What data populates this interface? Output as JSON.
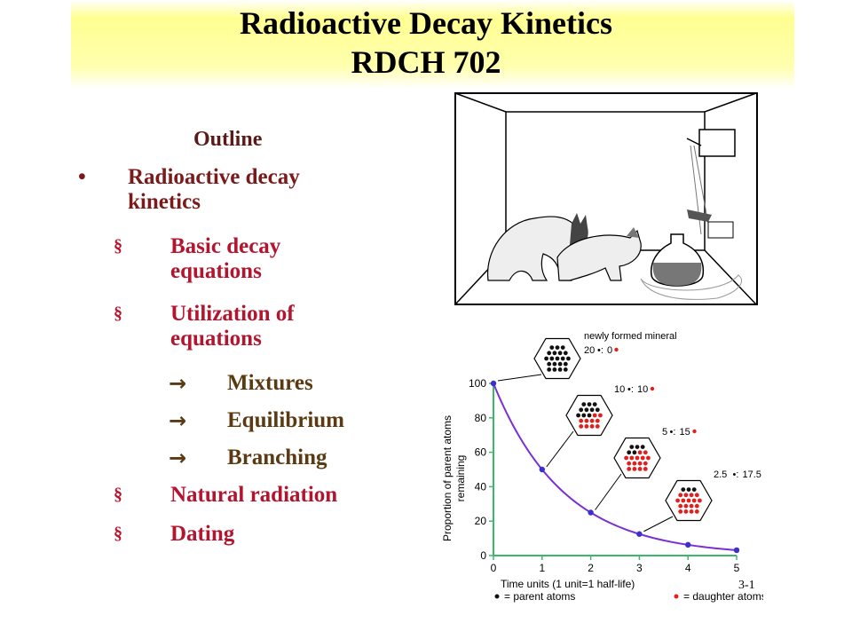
{
  "title": {
    "line1": "Radioactive Decay Kinetics",
    "line2": "RDCH 702"
  },
  "outline": {
    "heading": "Outline",
    "items": [
      {
        "level": 1,
        "bullet": "•",
        "text1": "Radioactive decay",
        "text2": "kinetics"
      },
      {
        "level": 2,
        "bullet": "§",
        "text1": "Basic decay",
        "text2": "equations"
      },
      {
        "level": 2,
        "bullet": "§",
        "text1": "Utilization of",
        "text2": "equations"
      },
      {
        "level": 3,
        "bullet": "→",
        "text1": "Mixtures"
      },
      {
        "level": 3,
        "bullet": "→",
        "text1": "Equilibrium"
      },
      {
        "level": 3,
        "bullet": "→",
        "text1": "Branching"
      },
      {
        "level": 2,
        "bullet": "§",
        "text1": "Natural radiation"
      },
      {
        "level": 2,
        "bullet": "§",
        "text1": "Dating"
      }
    ]
  },
  "slide_number": "3-1",
  "colors": {
    "curve": "#7a2fd6",
    "parent": "#111111",
    "daughter": "#e0201e",
    "axis": "#3cb86a",
    "title_band": "#ffff8c"
  },
  "chart_data": {
    "type": "line",
    "x": [
      0,
      1,
      2,
      3,
      4,
      5
    ],
    "y": [
      100,
      50,
      25,
      12.5,
      6.25,
      3.125
    ],
    "xlabel": "Time units (1 unit=1 half-life)",
    "ylabel_line1": "Proportion of parent atoms",
    "ylabel_line2": "remaining",
    "xticks": [
      "0",
      "1",
      "2",
      "3",
      "4",
      "5"
    ],
    "yticks": [
      "0",
      "20",
      "40",
      "60",
      "80",
      "100"
    ],
    "xlim": [
      0,
      5
    ],
    "ylim": [
      0,
      100
    ],
    "annotations": [
      {
        "label": "newly formed mineral",
        "ratio_parent": "20",
        "ratio_daughter": "0",
        "parent": 20,
        "daughter": 0
      },
      {
        "ratio_parent": "10",
        "ratio_daughter": "10",
        "parent": 10,
        "daughter": 10
      },
      {
        "ratio_parent": "5",
        "ratio_daughter": "15",
        "parent": 5,
        "daughter": 15
      },
      {
        "ratio_parent": "2.5",
        "ratio_daughter": "17.5",
        "parent": 2.5,
        "daughter": 17.5
      }
    ],
    "legend": {
      "parent": "= parent atoms",
      "daughter": "= daughter atoms",
      "placement": "bottom"
    }
  }
}
